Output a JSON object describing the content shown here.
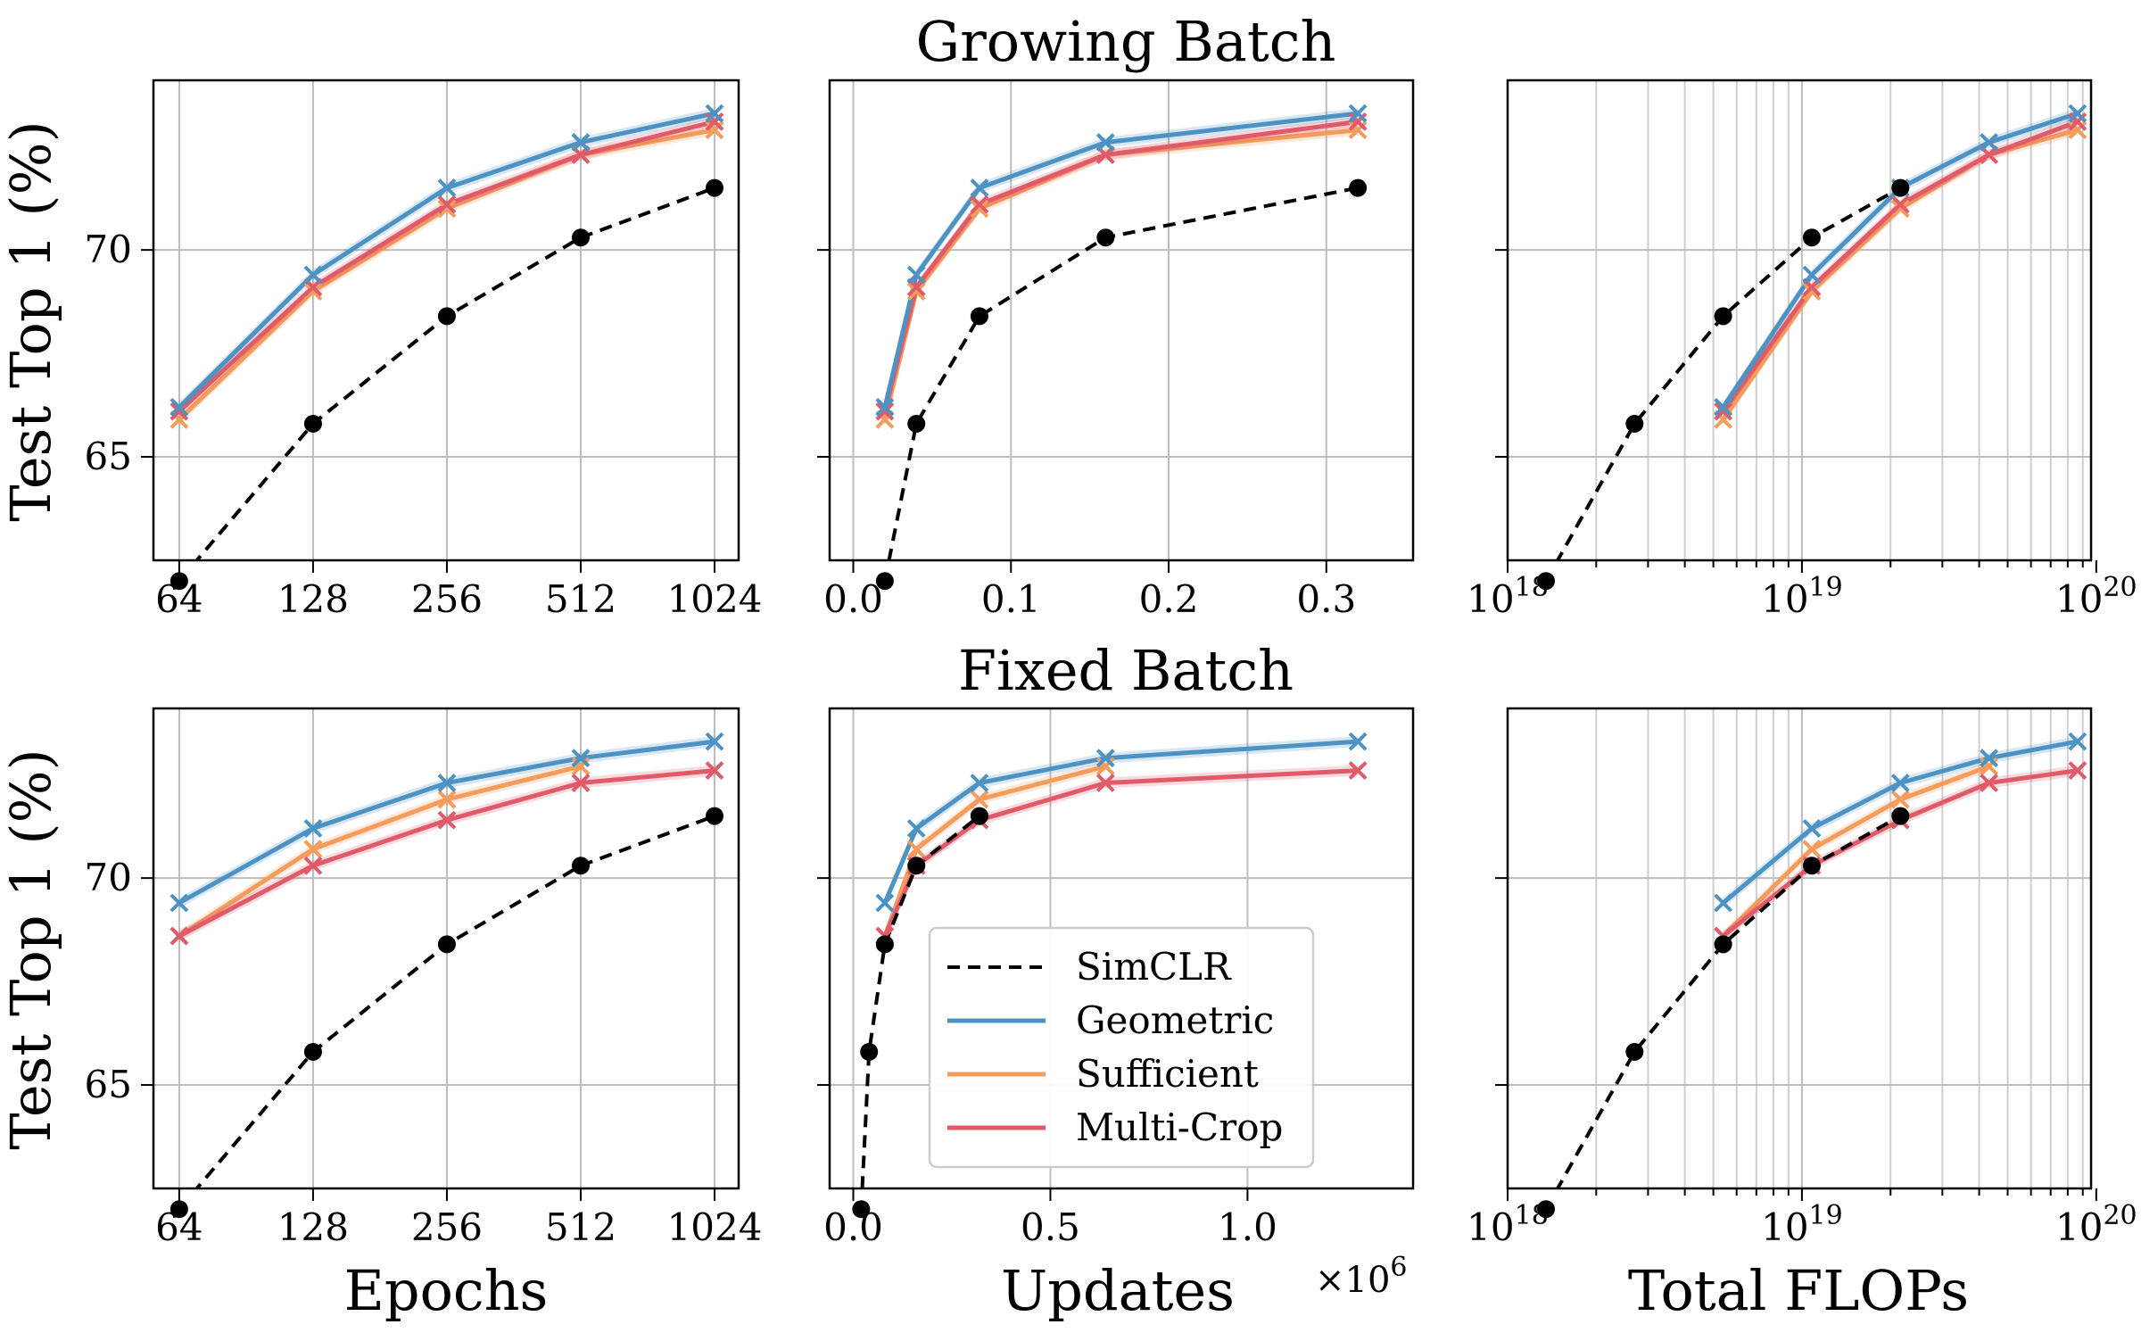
{
  "figure": {
    "row_titles": [
      "Growing Batch",
      "Fixed Batch"
    ],
    "ylabel": "Test Top 1 (%)",
    "xlabels": [
      "Epochs",
      "Updates",
      "Total FLOPs"
    ],
    "offset_text": "×10",
    "offset_exponent": "6",
    "colors": {
      "SimCLR": "#000000",
      "Geometric": "#4c93c3",
      "Sufficient": "#f39c5c",
      "Multi-Crop": "#e05a6a"
    },
    "legend": [
      {
        "name": "SimCLR",
        "style": "dashed",
        "color": "#000000"
      },
      {
        "name": "Geometric",
        "style": "solid",
        "color": "#4c93c3"
      },
      {
        "name": "Sufficient",
        "style": "solid",
        "color": "#f39c5c"
      },
      {
        "name": "Multi-Crop",
        "style": "solid",
        "color": "#e05a6a"
      }
    ]
  },
  "chart_data": [
    {
      "type": "line",
      "title": "Growing Batch",
      "xlabel": "",
      "ylabel": "Test Top 1 (%)",
      "xscale": "log2",
      "xlim": [
        56,
        1160
      ],
      "ylim": [
        62.5,
        74.1
      ],
      "xticks": [
        64,
        128,
        256,
        512,
        1024
      ],
      "xticklabels": [
        "64",
        "128",
        "256",
        "512",
        "1024"
      ],
      "yticks": [
        65,
        70
      ],
      "grid": true,
      "series": [
        {
          "name": "SimCLR",
          "x": [
            64,
            128,
            256,
            512,
            1024
          ],
          "y": [
            62.0,
            65.8,
            68.4,
            70.3,
            71.5
          ]
        },
        {
          "name": "Geometric",
          "x": [
            64,
            128,
            256,
            512,
            1024
          ],
          "y": [
            66.2,
            69.4,
            71.5,
            72.6,
            73.3
          ]
        },
        {
          "name": "Sufficient",
          "x": [
            64,
            128,
            256,
            512,
            1024
          ],
          "y": [
            65.9,
            69.0,
            71.0,
            72.3,
            72.9
          ]
        },
        {
          "name": "Multi-Crop",
          "x": [
            64,
            128,
            256,
            512,
            1024
          ],
          "y": [
            66.1,
            69.1,
            71.1,
            72.3,
            73.1
          ]
        }
      ]
    },
    {
      "type": "line",
      "xlabel": "",
      "xscale": "linear",
      "xlim": [
        -0.015,
        0.355
      ],
      "ylim": [
        62.5,
        74.1
      ],
      "xticks": [
        0.0,
        0.1,
        0.2,
        0.3
      ],
      "xticklabels": [
        "0.0",
        "0.1",
        "0.2",
        "0.3"
      ],
      "yticks": [
        65,
        70
      ],
      "grid": true,
      "series": [
        {
          "name": "SimCLR",
          "x": [
            0.02,
            0.04,
            0.08,
            0.16,
            0.32
          ],
          "y": [
            62.0,
            65.8,
            68.4,
            70.3,
            71.5
          ]
        },
        {
          "name": "Geometric",
          "x": [
            0.02,
            0.04,
            0.08,
            0.16,
            0.32
          ],
          "y": [
            66.2,
            69.4,
            71.5,
            72.6,
            73.3
          ]
        },
        {
          "name": "Sufficient",
          "x": [
            0.02,
            0.04,
            0.08,
            0.16,
            0.32
          ],
          "y": [
            65.9,
            69.0,
            71.0,
            72.3,
            72.9
          ]
        },
        {
          "name": "Multi-Crop",
          "x": [
            0.02,
            0.04,
            0.08,
            0.16,
            0.32
          ],
          "y": [
            66.1,
            69.1,
            71.1,
            72.3,
            73.1
          ]
        }
      ]
    },
    {
      "type": "line",
      "xlabel": "",
      "xscale": "log10",
      "xlim": [
        1e+18,
        9.6e+19
      ],
      "ylim": [
        62.5,
        74.1
      ],
      "xticks": [
        1e+18,
        1e+19,
        1e+20
      ],
      "xticklabels": [
        [
          "10",
          "18"
        ],
        [
          "10",
          "19"
        ],
        [
          "10",
          "20"
        ]
      ],
      "yticks": [
        65,
        70
      ],
      "grid": true,
      "minor_grid": true,
      "series": [
        {
          "name": "SimCLR",
          "x": [
            1.35e+18,
            2.7e+18,
            5.4e+18,
            1.08e+19,
            2.16e+19
          ],
          "y": [
            62.0,
            65.8,
            68.4,
            70.3,
            71.5
          ]
        },
        {
          "name": "Geometric",
          "x": [
            5.4e+18,
            1.08e+19,
            2.16e+19,
            4.32e+19,
            8.64e+19
          ],
          "y": [
            66.2,
            69.4,
            71.5,
            72.6,
            73.3
          ]
        },
        {
          "name": "Sufficient",
          "x": [
            5.4e+18,
            1.08e+19,
            2.16e+19,
            4.32e+19,
            8.64e+19
          ],
          "y": [
            65.9,
            69.0,
            71.0,
            72.3,
            72.9
          ]
        },
        {
          "name": "Multi-Crop",
          "x": [
            5.4e+18,
            1.08e+19,
            2.16e+19,
            4.32e+19,
            8.64e+19
          ],
          "y": [
            66.1,
            69.1,
            71.1,
            72.3,
            73.1
          ]
        }
      ]
    },
    {
      "type": "line",
      "title": "Fixed Batch",
      "xlabel": "Epochs",
      "ylabel": "Test Top 1 (%)",
      "xscale": "log2",
      "xlim": [
        56,
        1160
      ],
      "ylim": [
        62.5,
        74.1
      ],
      "xticks": [
        64,
        128,
        256,
        512,
        1024
      ],
      "xticklabels": [
        "64",
        "128",
        "256",
        "512",
        "1024"
      ],
      "yticks": [
        65,
        70
      ],
      "grid": true,
      "series": [
        {
          "name": "SimCLR",
          "x": [
            64,
            128,
            256,
            512,
            1024
          ],
          "y": [
            62.0,
            65.8,
            68.4,
            70.3,
            71.5
          ]
        },
        {
          "name": "Geometric",
          "x": [
            64,
            128,
            256,
            512,
            1024
          ],
          "y": [
            69.4,
            71.2,
            72.3,
            72.9,
            73.3
          ]
        },
        {
          "name": "Sufficient",
          "x": [
            64,
            128,
            256,
            512
          ],
          "y": [
            68.6,
            70.7,
            71.9,
            72.7
          ]
        },
        {
          "name": "Multi-Crop",
          "x": [
            64,
            128,
            256,
            512,
            1024
          ],
          "y": [
            68.6,
            70.3,
            71.4,
            72.3,
            72.6
          ]
        }
      ]
    },
    {
      "type": "line",
      "xlabel": "Updates",
      "xscale": "linear",
      "x_multiplier": "1e6",
      "xlim": [
        -0.06,
        1.42
      ],
      "ylim": [
        62.5,
        74.1
      ],
      "xticks": [
        0.0,
        0.5,
        1.0
      ],
      "xticklabels": [
        "0.0",
        "0.5",
        "1.0"
      ],
      "yticks": [
        65,
        70
      ],
      "grid": true,
      "legend_position": "lower-right",
      "series": [
        {
          "name": "SimCLR",
          "x": [
            0.02,
            0.04,
            0.08,
            0.16,
            0.32
          ],
          "y": [
            62.0,
            65.8,
            68.4,
            70.3,
            71.5
          ]
        },
        {
          "name": "Geometric",
          "x": [
            0.08,
            0.16,
            0.32,
            0.64,
            1.28
          ],
          "y": [
            69.4,
            71.2,
            72.3,
            72.9,
            73.3
          ]
        },
        {
          "name": "Sufficient",
          "x": [
            0.08,
            0.16,
            0.32,
            0.64
          ],
          "y": [
            68.6,
            70.7,
            71.9,
            72.7
          ]
        },
        {
          "name": "Multi-Crop",
          "x": [
            0.08,
            0.16,
            0.32,
            0.64,
            1.28
          ],
          "y": [
            68.6,
            70.3,
            71.4,
            72.3,
            72.6
          ]
        }
      ]
    },
    {
      "type": "line",
      "xlabel": "Total FLOPs",
      "xscale": "log10",
      "xlim": [
        1e+18,
        9.6e+19
      ],
      "ylim": [
        62.5,
        74.1
      ],
      "xticks": [
        1e+18,
        1e+19,
        1e+20
      ],
      "xticklabels": [
        [
          "10",
          "18"
        ],
        [
          "10",
          "19"
        ],
        [
          "10",
          "20"
        ]
      ],
      "yticks": [
        65,
        70
      ],
      "grid": true,
      "minor_grid": true,
      "series": [
        {
          "name": "SimCLR",
          "x": [
            1.35e+18,
            2.7e+18,
            5.4e+18,
            1.08e+19,
            2.16e+19
          ],
          "y": [
            62.0,
            65.8,
            68.4,
            70.3,
            71.5
          ]
        },
        {
          "name": "Geometric",
          "x": [
            5.4e+18,
            1.08e+19,
            2.16e+19,
            4.32e+19,
            8.64e+19
          ],
          "y": [
            69.4,
            71.2,
            72.3,
            72.9,
            73.3
          ]
        },
        {
          "name": "Sufficient",
          "x": [
            5.4e+18,
            1.08e+19,
            2.16e+19,
            4.32e+19
          ],
          "y": [
            68.6,
            70.7,
            71.9,
            72.7
          ]
        },
        {
          "name": "Multi-Crop",
          "x": [
            5.4e+18,
            1.08e+19,
            2.16e+19,
            4.32e+19,
            8.64e+19
          ],
          "y": [
            68.6,
            70.3,
            71.4,
            72.3,
            72.6
          ]
        }
      ]
    }
  ]
}
